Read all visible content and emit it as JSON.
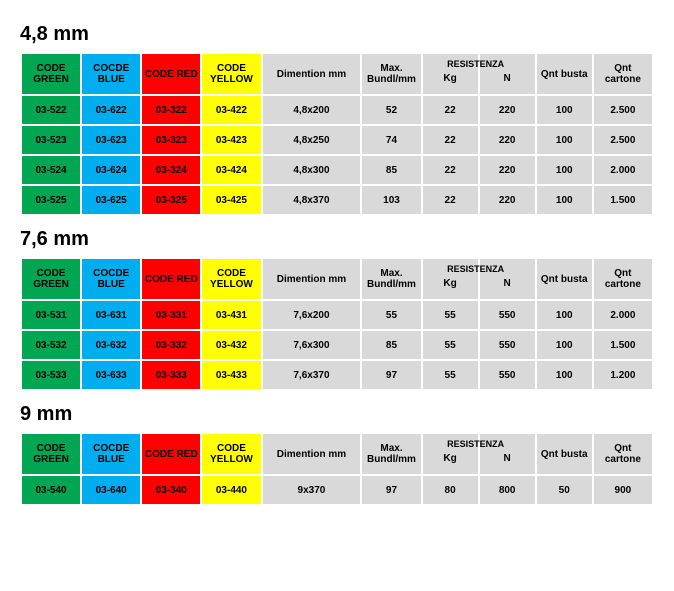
{
  "colors": {
    "green": "#00a651",
    "blue": "#00aeef",
    "red": "#ff0000",
    "yellow": "#ffff00",
    "gray": "#d9d9d9",
    "white": "#ffffff",
    "black": "#000000"
  },
  "column_widths_pct": [
    9.5,
    9.5,
    9.5,
    9.5,
    16,
    9.5,
    9,
    9,
    9,
    9.5
  ],
  "headers": {
    "green": "CODE GREEN",
    "blue": "COCDE BLUE",
    "red": "CODE RED",
    "yellow": "CODE YELLOW",
    "dim": "Dimention mm",
    "bundle": "Max. Bundl/mm",
    "res_kg": "Kg",
    "res_n": "N",
    "res_top": "RESISTENZA",
    "qnt_busta": "Qnt busta",
    "qnt_cart": "Qnt cartone"
  },
  "sections": [
    {
      "title": "4,8 mm",
      "rows": [
        {
          "green": "03-522",
          "blue": "03-622",
          "red": "03-322",
          "yellow": "03-422",
          "dim": "4,8x200",
          "bundle": "52",
          "kg": "22",
          "n": "220",
          "busta": "100",
          "cart": "2.500"
        },
        {
          "green": "03-523",
          "blue": "03-623",
          "red": "03-323",
          "yellow": "03-423",
          "dim": "4,8x250",
          "bundle": "74",
          "kg": "22",
          "n": "220",
          "busta": "100",
          "cart": "2.500"
        },
        {
          "green": "03-524",
          "blue": "03-624",
          "red": "03-324",
          "yellow": "03-424",
          "dim": "4,8x300",
          "bundle": "85",
          "kg": "22",
          "n": "220",
          "busta": "100",
          "cart": "2.000"
        },
        {
          "green": "03-525",
          "blue": "03-625",
          "red": "03-325",
          "yellow": "03-425",
          "dim": "4,8x370",
          "bundle": "103",
          "kg": "22",
          "n": "220",
          "busta": "100",
          "cart": "1.500"
        }
      ]
    },
    {
      "title": "7,6 mm",
      "rows": [
        {
          "green": "03-531",
          "blue": "03-631",
          "red": "03-331",
          "yellow": "03-431",
          "dim": "7,6x200",
          "bundle": "55",
          "kg": "55",
          "n": "550",
          "busta": "100",
          "cart": "2.000"
        },
        {
          "green": "03-532",
          "blue": "03-632",
          "red": "03-332",
          "yellow": "03-432",
          "dim": "7,6x300",
          "bundle": "85",
          "kg": "55",
          "n": "550",
          "busta": "100",
          "cart": "1.500"
        },
        {
          "green": "03-533",
          "blue": "03-633",
          "red": "03-333",
          "yellow": "03-433",
          "dim": "7,6x370",
          "bundle": "97",
          "kg": "55",
          "n": "550",
          "busta": "100",
          "cart": "1.200"
        }
      ]
    },
    {
      "title": "9 mm",
      "rows": [
        {
          "green": "03-540",
          "blue": "03-640",
          "red": "03-340",
          "yellow": "03-440",
          "dim": "9x370",
          "bundle": "97",
          "kg": "80",
          "n": "800",
          "busta": "50",
          "cart": "900"
        }
      ]
    }
  ]
}
